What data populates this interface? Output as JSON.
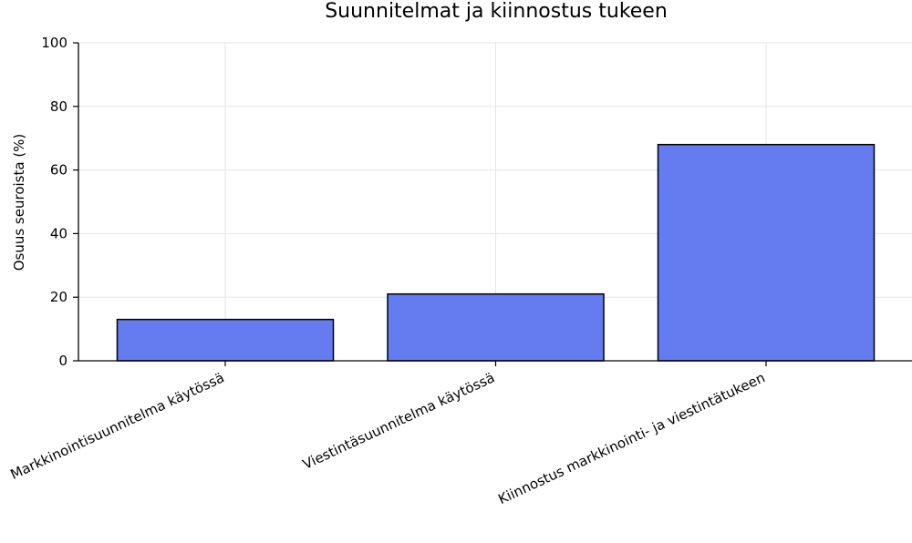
{
  "chart_data": {
    "type": "bar",
    "title": "Suunnitelmat ja kiinnostus tukeen",
    "xlabel": "",
    "ylabel": "Osuus seuroista (%)",
    "ylim": [
      0,
      100
    ],
    "yticks": [
      0,
      20,
      40,
      60,
      80,
      100
    ],
    "grid": true,
    "categories": [
      "Markkinointisuunnitelma käytössä",
      "Viestintäsuunnitelma käytössä",
      "Kiinnostus markkinointi- ja viestintätukeen"
    ],
    "values": [
      13,
      21,
      68
    ],
    "bar_color": "#647cf0",
    "edge_color": "#000000"
  }
}
